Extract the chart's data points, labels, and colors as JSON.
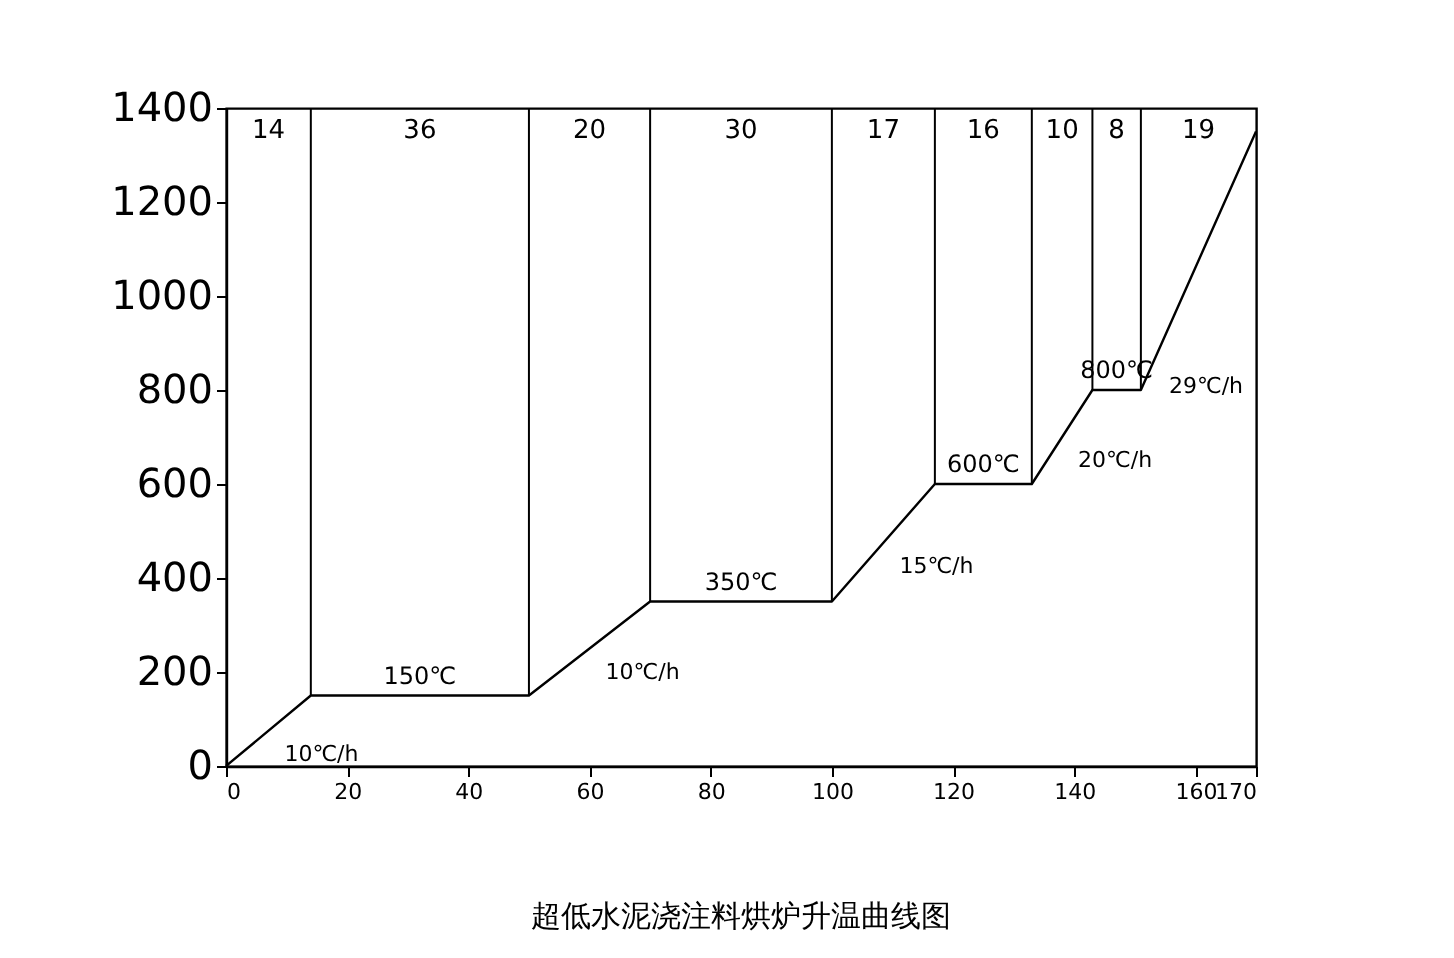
{
  "chart_data": {
    "type": "line",
    "title": "超低水泥浇注料烘炉升温曲线图",
    "x": [
      0,
      14,
      50,
      70,
      100,
      117,
      133,
      143,
      151,
      170
    ],
    "series": [
      {
        "color": "#000000",
        "values": [
          0,
          150,
          150,
          350,
          350,
          600,
          600,
          800,
          800,
          1350
        ]
      }
    ],
    "xlim": [
      0,
      170
    ],
    "xticks": [
      0,
      20,
      40,
      60,
      80,
      100,
      120,
      140,
      160,
      170
    ],
    "ylim": [
      0,
      1400
    ],
    "yticks": [
      0,
      200,
      400,
      600,
      800,
      1000,
      1200,
      1400
    ],
    "grid": false,
    "marker": "none",
    "line_style": "solid",
    "ref_lines": [
      {
        "axis": "x",
        "value": 14,
        "label": null
      },
      {
        "axis": "x",
        "value": 50,
        "label": null
      },
      {
        "axis": "x",
        "value": 70,
        "label": null
      },
      {
        "axis": "x",
        "value": 100,
        "label": null
      },
      {
        "axis": "x",
        "value": 117,
        "label": null
      },
      {
        "axis": "x",
        "value": 133,
        "label": null
      },
      {
        "axis": "x",
        "value": 143,
        "label": null
      },
      {
        "axis": "x",
        "value": 151,
        "label": null
      }
    ],
    "annotations": [
      "14",
      "36",
      "20",
      "30",
      "17",
      "16",
      "10",
      "8",
      "19",
      {
        "text": "10℃/h",
        "x": 7,
        "y": 75
      },
      {
        "text": "150℃",
        "x": 32,
        "y": 150
      },
      {
        "text": "10℃/h",
        "x": 60,
        "y": 250
      },
      {
        "text": "350℃",
        "x": 85,
        "y": 350
      },
      {
        "text": "15℃/h",
        "x": 108.5,
        "y": 475
      },
      {
        "text": "600℃",
        "x": 125,
        "y": 600
      },
      {
        "text": "20℃/h",
        "x": 138,
        "y": 700
      },
      {
        "text": "800℃",
        "x": 147,
        "y": 800
      },
      {
        "text": "29℃/h",
        "x": 153,
        "y": 858
      }
    ]
  }
}
